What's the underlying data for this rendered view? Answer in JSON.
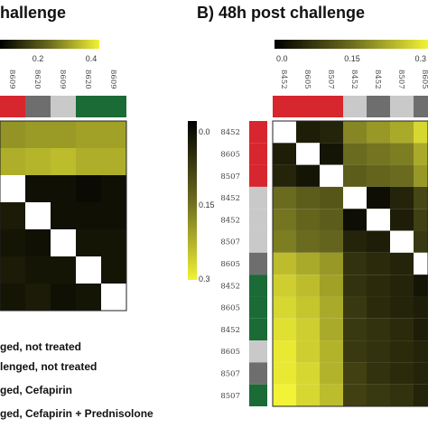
{
  "colors": {
    "group_colors": {
      "challenged_not_treated": "#d7262d",
      "not_challenged_not_treated": "#c9c9c9",
      "challenged_cefapirin": "#6e6e6e",
      "challenged_cefapirin_prednisolone": "#1a6b36"
    },
    "scale_low": "#000000",
    "scale_mid": "#6b6b1f",
    "scale_high": "#f2f236"
  },
  "legend": {
    "items": [
      {
        "label": "ged, not treated",
        "color": "challenged_not_treated"
      },
      {
        "label": "lenged, not treated",
        "color": "not_challenged_not_treated"
      },
      {
        "label": "ged, Cefapirin",
        "color": "challenged_cefapirin"
      },
      {
        "label": "ged, Cefapirin + Prednisolone",
        "color": "challenged_cefapirin_prednisolone"
      }
    ]
  },
  "chart_data": [
    {
      "type": "heatmap",
      "title": "hallenge",
      "colorbar": {
        "ticks": [
          "0.2",
          "0.4"
        ],
        "range": [
          0,
          0.4
        ]
      },
      "col_labels": [
        "8609",
        "8620",
        "8609",
        "8620",
        "8609"
      ],
      "col_groups": [
        "challenged_not_treated",
        "challenged_cefapirin",
        "not_challenged_not_treated",
        "challenged_cefapirin_prednisolone",
        "challenged_cefapirin_prednisolone"
      ],
      "rows": [
        [
          0.26,
          0.27,
          0.27,
          0.28,
          0.28
        ],
        [
          0.3,
          0.31,
          0.32,
          0.3,
          0.3
        ],
        [
          0.0,
          0.03,
          0.03,
          0.02,
          0.03
        ],
        [
          0.05,
          0.0,
          0.03,
          0.03,
          0.03
        ],
        [
          0.04,
          0.03,
          0.0,
          0.04,
          0.04
        ],
        [
          0.05,
          0.04,
          0.04,
          0.0,
          0.04
        ],
        [
          0.04,
          0.05,
          0.03,
          0.04,
          0.0
        ]
      ]
    },
    {
      "type": "heatmap",
      "title": "B) 48h post challenge",
      "colorbar_top": {
        "ticks": [
          "0.0",
          "0.15",
          "0.3"
        ],
        "range": [
          0,
          0.3
        ]
      },
      "colorbar_left": {
        "ticks": [
          "0.0",
          "0.15",
          "0.3"
        ],
        "range": [
          0,
          0.3
        ]
      },
      "col_labels": [
        "8452",
        "8605",
        "8507",
        "8452",
        "8452",
        "8507",
        "8605"
      ],
      "row_labels": [
        "8452",
        "8605",
        "8507",
        "8452",
        "8452",
        "8507",
        "8605",
        "8452",
        "8605",
        "8452",
        "8605",
        "8507",
        "8507"
      ],
      "col_groups": [
        "challenged_not_treated",
        "challenged_not_treated",
        "challenged_not_treated",
        "not_challenged_not_treated",
        "challenged_cefapirin",
        "not_challenged_not_treated",
        "challenged_cefapirin"
      ],
      "row_groups": [
        "challenged_not_treated",
        "challenged_not_treated",
        "challenged_not_treated",
        "not_challenged_not_treated",
        "not_challenged_not_treated",
        "not_challenged_not_treated",
        "challenged_cefapirin",
        "challenged_cefapirin_prednisolone",
        "challenged_cefapirin_prednisolone",
        "challenged_cefapirin_prednisolone",
        "not_challenged_not_treated",
        "challenged_cefapirin",
        "challenged_cefapirin_prednisolone"
      ],
      "rows": [
        [
          0.0,
          0.04,
          0.05,
          0.18,
          0.2,
          0.22,
          0.27
        ],
        [
          0.04,
          0.0,
          0.03,
          0.15,
          0.16,
          0.17,
          0.22
        ],
        [
          0.05,
          0.03,
          0.0,
          0.13,
          0.14,
          0.15,
          0.2
        ],
        [
          0.15,
          0.13,
          0.12,
          0.0,
          0.02,
          0.05,
          0.1
        ],
        [
          0.16,
          0.14,
          0.13,
          0.02,
          0.0,
          0.04,
          0.09
        ],
        [
          0.17,
          0.15,
          0.14,
          0.05,
          0.04,
          0.0,
          0.08
        ],
        [
          0.24,
          0.22,
          0.2,
          0.07,
          0.06,
          0.05,
          0.0
        ],
        [
          0.26,
          0.24,
          0.21,
          0.07,
          0.06,
          0.05,
          0.03
        ],
        [
          0.27,
          0.25,
          0.22,
          0.08,
          0.06,
          0.05,
          0.04
        ],
        [
          0.28,
          0.26,
          0.22,
          0.08,
          0.07,
          0.06,
          0.04
        ],
        [
          0.29,
          0.26,
          0.23,
          0.08,
          0.07,
          0.06,
          0.05
        ],
        [
          0.29,
          0.27,
          0.23,
          0.09,
          0.07,
          0.06,
          0.05
        ],
        [
          0.3,
          0.27,
          0.24,
          0.09,
          0.08,
          0.07,
          0.05
        ]
      ]
    }
  ]
}
